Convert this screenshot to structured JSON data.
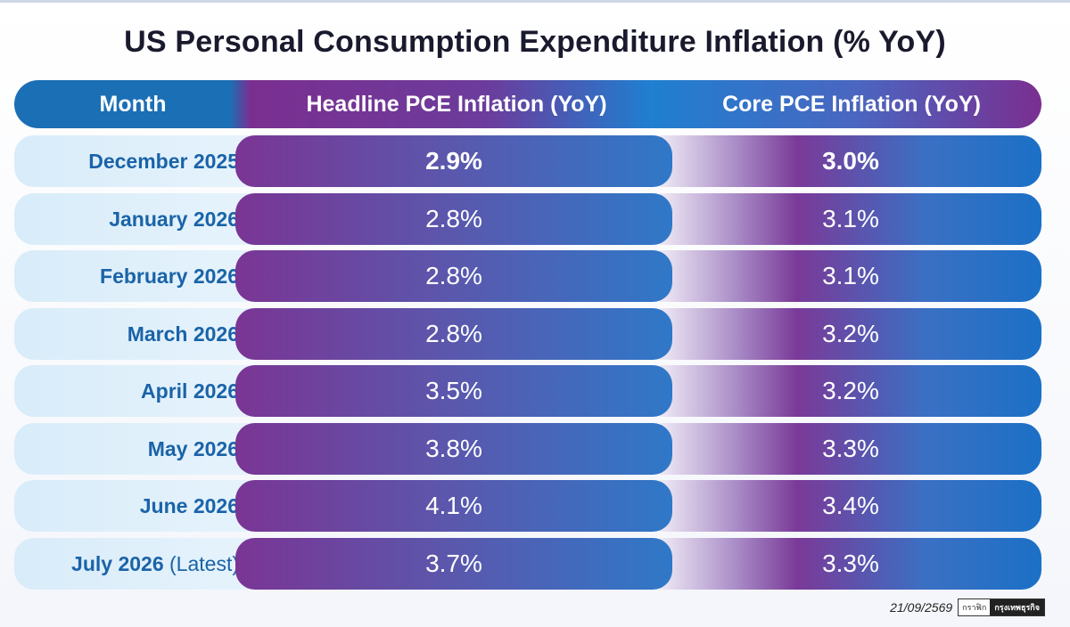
{
  "chart_data": {
    "type": "table",
    "title": "US Personal Consumption Expenditure Inflation (% YoY)",
    "columns": [
      "Month",
      "Headline PCE Inflation (YoY)",
      "Core PCE Inflation (YoY)"
    ],
    "rows": [
      {
        "month": "December 2025",
        "suffix": "",
        "headline": "2.9%",
        "core": "3.0%"
      },
      {
        "month": "January 2026",
        "suffix": "",
        "headline": "2.8%",
        "core": "3.1%"
      },
      {
        "month": "February 2026",
        "suffix": "",
        "headline": "2.8%",
        "core": "3.1%"
      },
      {
        "month": "March 2026",
        "suffix": "",
        "headline": "2.8%",
        "core": "3.2%"
      },
      {
        "month": "April 2026",
        "suffix": "",
        "headline": "3.5%",
        "core": "3.2%"
      },
      {
        "month": "May 2026",
        "suffix": "",
        "headline": "3.8%",
        "core": "3.3%"
      },
      {
        "month": "June 2026",
        "suffix": "",
        "headline": "4.1%",
        "core": "3.4%"
      },
      {
        "month": "July 2026",
        "suffix": "(Latest)",
        "headline": "3.7%",
        "core": "3.3%"
      }
    ],
    "headline_values": [
      2.9,
      2.8,
      2.8,
      2.8,
      3.5,
      3.8,
      4.1,
      3.7
    ],
    "core_values": [
      3.0,
      3.1,
      3.1,
      3.2,
      3.2,
      3.3,
      3.4,
      3.3
    ]
  },
  "footer": {
    "date": "21/09/2569",
    "logo_left": "กราฟิก",
    "logo_right": "กรุงเทพธุรกิจ"
  },
  "colors": {
    "month_blue": "#1a63a8",
    "header_blue": "#1b6fb5",
    "purple": "#7a2f90"
  }
}
